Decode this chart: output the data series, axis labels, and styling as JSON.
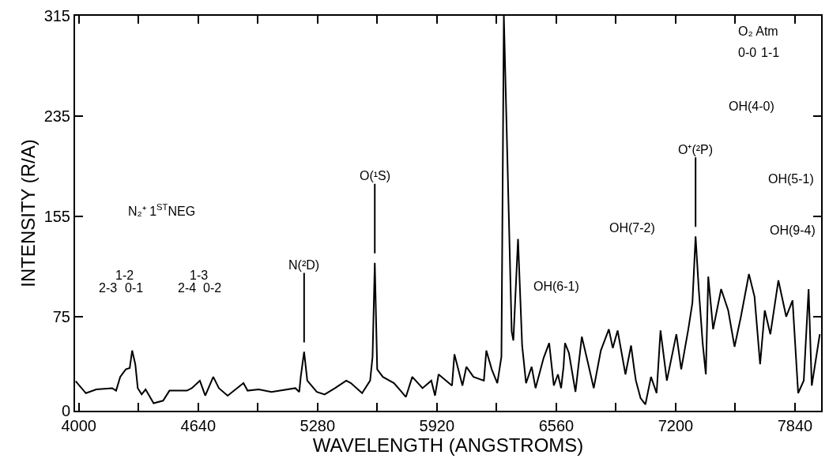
{
  "chart_data": {
    "type": "line",
    "xlabel": "WAVELENGTH (ANGSTROMS)",
    "ylabel": "INTENSITY (R/A)",
    "x": [
      3983,
      4038,
      4094,
      4179,
      4200,
      4222,
      4252,
      4273,
      4286,
      4303,
      4316,
      4337,
      4358,
      4401,
      4452,
      4486,
      4580,
      4606,
      4649,
      4678,
      4721,
      4751,
      4798,
      4883,
      4905,
      4964,
      5033,
      5161,
      5182,
      5190,
      5208,
      5225,
      5276,
      5318,
      5374,
      5434,
      5459,
      5519,
      5562,
      5575,
      5587,
      5600,
      5630,
      5690,
      5754,
      5788,
      5843,
      5890,
      5910,
      5929,
      6001,
      6014,
      6057,
      6078,
      6116,
      6172,
      6185,
      6214,
      6244,
      6266,
      6279,
      6321,
      6330,
      6355,
      6377,
      6398,
      6428,
      6449,
      6492,
      6522,
      6547,
      6569,
      6586,
      6599,
      6607,
      6628,
      6663,
      6697,
      6727,
      6761,
      6799,
      6842,
      6863,
      6889,
      6931,
      6961,
      6978,
      6987,
      7012,
      7038,
      7068,
      7098,
      7119,
      7153,
      7204,
      7230,
      7268,
      7290,
      7307,
      7324,
      7345,
      7362,
      7375,
      7401,
      7444,
      7482,
      7516,
      7550,
      7593,
      7623,
      7653,
      7678,
      7708,
      7751,
      7793,
      7827,
      7857,
      7887,
      7913,
      7930,
      7973
    ],
    "series": [
      {
        "color": "#000000",
        "values": [
          23.6,
          14,
          17,
          18,
          16,
          27,
          33,
          34,
          48,
          37,
          18,
          13,
          17,
          6,
          8,
          16,
          16,
          18,
          24,
          12,
          27,
          18,
          12,
          22,
          16,
          17,
          15,
          18,
          15,
          27,
          47,
          24,
          15,
          13,
          18,
          24,
          22,
          14,
          24,
          43,
          118,
          33,
          27,
          22,
          11,
          27,
          18,
          24,
          12,
          29,
          20,
          45,
          20,
          35,
          27,
          24,
          48,
          33,
          22,
          43,
          315,
          63,
          56,
          137,
          52,
          22,
          35,
          18,
          42,
          54,
          20,
          29,
          18,
          35,
          54,
          46,
          15,
          59,
          40,
          18,
          48,
          65,
          50,
          64,
          29,
          52,
          33,
          24,
          10,
          5,
          27,
          14,
          64,
          24,
          61,
          33,
          65,
          86,
          139,
          97,
          54,
          29,
          107,
          65,
          97,
          80,
          51,
          75,
          109,
          91,
          37,
          80,
          61,
          104,
          75,
          88,
          14,
          24,
          97,
          20,
          61
        ]
      }
    ],
    "xlim": [
      3980,
      7980
    ],
    "xticks": [
      4000,
      {
        "value": 4320,
        "label": null
      },
      4640,
      {
        "value": 4960,
        "label": null
      },
      5280,
      {
        "value": 5600,
        "label": null
      },
      5920,
      {
        "value": 6240,
        "label": null
      },
      6560,
      {
        "value": 6880,
        "label": null
      },
      7200,
      {
        "value": 7520,
        "label": null
      },
      7840
    ],
    "ylim": [
      0,
      315
    ],
    "yticks": [
      0,
      75,
      155,
      235,
      315
    ],
    "marker": "none",
    "line_style": "solid",
    "annotations": [
      {
        "text": "N(²D)",
        "x": 5208,
        "y": 47
      },
      {
        "text": "O(¹S)",
        "x": 5587,
        "y": 118
      },
      {
        "text": "O⁺(²P)",
        "x": 7307,
        "y": 139
      },
      "N₂⁺ 1$^{ST}$NEG",
      "1-2",
      "2-3",
      "0-1",
      "1-3",
      "2-4",
      "0-2",
      "OH(6-1)",
      "OH(7-2)",
      "OH(4-0)",
      "OH(5-1)",
      "OH(9-4)",
      "O₂ Atm",
      "0-0",
      "1-1"
    ]
  }
}
